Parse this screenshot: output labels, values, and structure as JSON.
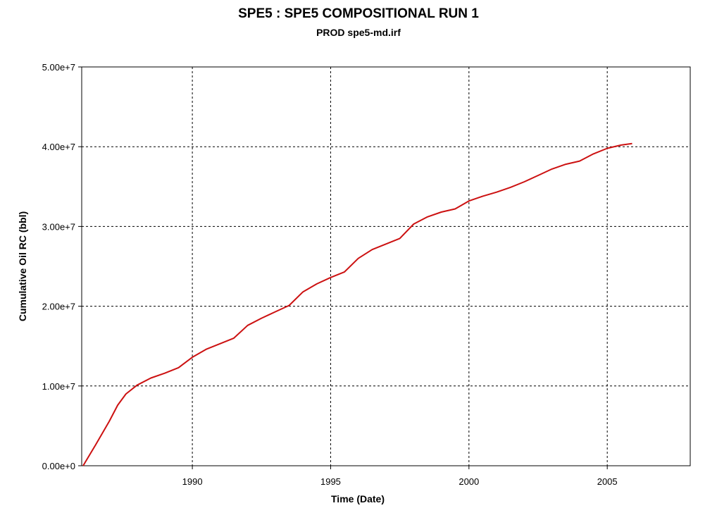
{
  "chart_data": {
    "type": "line",
    "title": "SPE5 :  SPE5 COMPOSITIONAL RUN 1",
    "subtitle": "PROD spe5-md.irf",
    "xlabel": "Time (Date)",
    "ylabel": "Cumulative Oil RC (bbl)",
    "xlim": [
      1986.0,
      2008.0
    ],
    "ylim": [
      0,
      50000000
    ],
    "xticks": [
      1990,
      1995,
      2000,
      2005
    ],
    "xtick_labels": [
      "1990",
      "1995",
      "2000",
      "2005"
    ],
    "yticks": [
      0,
      10000000,
      20000000,
      30000000,
      40000000,
      50000000
    ],
    "ytick_labels": [
      "0.00e+0",
      "1.00e+7",
      "2.00e+7",
      "3.00e+7",
      "4.00e+7",
      "5.00e+7"
    ],
    "grid": true,
    "color": "#cc1111",
    "series": [
      {
        "x": [
          1986.05,
          1986.5,
          1987.0,
          1987.3,
          1987.6,
          1988.0,
          1988.5,
          1989.0,
          1989.5,
          1990.0,
          1990.5,
          1991.0,
          1991.5,
          1992.0,
          1992.5,
          1993.0,
          1993.5,
          1994.0,
          1994.5,
          1995.0,
          1995.5,
          1996.0,
          1996.5,
          1997.0,
          1997.5,
          1998.0,
          1998.5,
          1999.0,
          1999.5,
          2000.0,
          2000.5,
          2001.0,
          2001.5,
          2002.0,
          2002.5,
          2003.0,
          2003.5,
          2004.0,
          2004.5,
          2005.0,
          2005.5,
          2005.9
        ],
        "y": [
          0,
          2600000,
          5600000,
          7600000,
          9000000,
          10100000,
          11000000,
          11600000,
          12300000,
          13600000,
          14600000,
          15300000,
          16000000,
          17600000,
          18500000,
          19300000,
          20100000,
          21800000,
          22800000,
          23600000,
          24300000,
          26000000,
          27100000,
          27800000,
          28500000,
          30300000,
          31200000,
          31800000,
          32200000,
          33200000,
          33800000,
          34300000,
          34900000,
          35600000,
          36400000,
          37200000,
          37800000,
          38200000,
          39100000,
          39800000,
          40200000,
          40400000
        ]
      }
    ]
  }
}
